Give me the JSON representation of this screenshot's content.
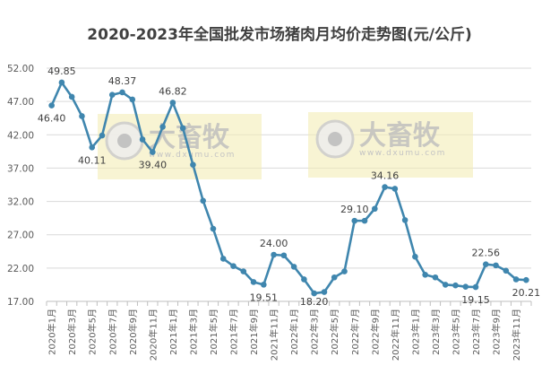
{
  "chart_data": {
    "type": "line",
    "title": "2020-2023年全国批发市场猪肉月均价走势图(元/公斤)",
    "xlabel": "",
    "ylabel": "",
    "ylim": [
      17,
      52
    ],
    "yticks": [
      "17.00",
      "22.00",
      "27.00",
      "32.00",
      "37.00",
      "42.00",
      "47.00",
      "52.00"
    ],
    "ytick_values": [
      17,
      22,
      27,
      32,
      37,
      42,
      47,
      52
    ],
    "grid": true,
    "line_color": "#3F86AE",
    "watermark": {
      "brand": "大畜牧",
      "url": "www.dxumu.com",
      "color": "#F3EDB5"
    },
    "x": [
      "2020年1月",
      "2020年2月",
      "2020年3月",
      "2020年4月",
      "2020年5月",
      "2020年6月",
      "2020年7月",
      "2020年8月",
      "2020年9月",
      "2020年10月",
      "2020年11月",
      "2020年12月",
      "2021年1月",
      "2021年2月",
      "2021年3月",
      "2021年4月",
      "2021年5月",
      "2021年6月",
      "2021年7月",
      "2021年8月",
      "2021年9月",
      "2021年10月",
      "2021年11月",
      "2021年12月",
      "2022年1月",
      "2022年2月",
      "2022年3月",
      "2022年4月",
      "2022年5月",
      "2022年6月",
      "2022年7月",
      "2022年8月",
      "2022年9月",
      "2022年10月",
      "2022年11月",
      "2022年12月",
      "2023年1月",
      "2023年2月",
      "2023年3月",
      "2023年4月",
      "2023年5月",
      "2023年6月",
      "2023年7月",
      "2023年8月",
      "2023年9月",
      "2023年10月",
      "2023年11月",
      "2023年12月"
    ],
    "values": [
      46.4,
      49.85,
      47.7,
      44.8,
      40.11,
      41.9,
      48.0,
      48.37,
      47.3,
      41.3,
      39.4,
      43.2,
      46.82,
      43.0,
      37.5,
      32.1,
      27.9,
      23.4,
      22.3,
      21.5,
      19.9,
      19.51,
      24.0,
      23.9,
      22.2,
      20.3,
      18.2,
      18.4,
      20.6,
      21.5,
      29.1,
      29.1,
      30.9,
      34.16,
      33.9,
      29.2,
      23.7,
      21.0,
      20.6,
      19.5,
      19.4,
      19.2,
      19.15,
      22.56,
      22.4,
      21.6,
      20.3,
      20.21
    ],
    "data_labels": [
      {
        "index": 0,
        "text": "46.40",
        "pos": "below"
      },
      {
        "index": 1,
        "text": "49.85",
        "pos": "above"
      },
      {
        "index": 4,
        "text": "40.11",
        "pos": "below"
      },
      {
        "index": 7,
        "text": "48.37",
        "pos": "above"
      },
      {
        "index": 10,
        "text": "39.40",
        "pos": "below"
      },
      {
        "index": 12,
        "text": "46.82",
        "pos": "above"
      },
      {
        "index": 21,
        "text": "19.51",
        "pos": "below"
      },
      {
        "index": 22,
        "text": "24.00",
        "pos": "above"
      },
      {
        "index": 26,
        "text": "18.20",
        "pos": "below"
      },
      {
        "index": 30,
        "text": "29.10",
        "pos": "above"
      },
      {
        "index": 33,
        "text": "34.16",
        "pos": "above"
      },
      {
        "index": 42,
        "text": "19.15",
        "pos": "below"
      },
      {
        "index": 43,
        "text": "22.56",
        "pos": "above"
      },
      {
        "index": 47,
        "text": "20.21",
        "pos": "below"
      }
    ]
  }
}
